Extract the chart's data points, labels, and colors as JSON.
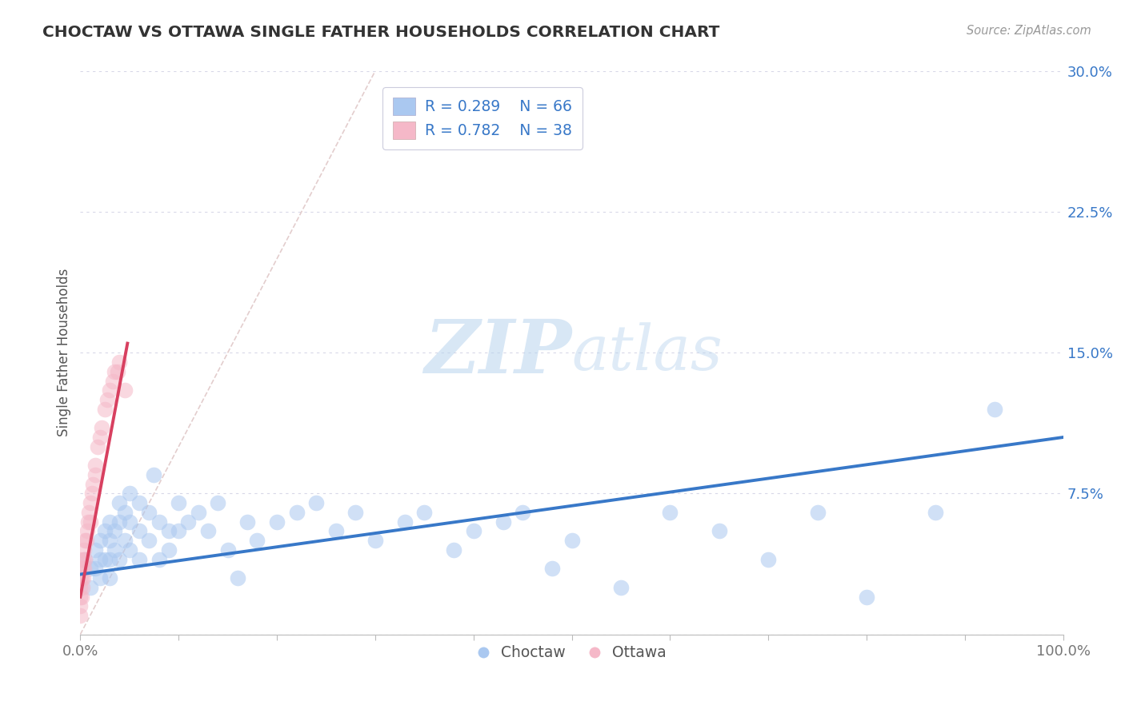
{
  "title": "CHOCTAW VS OTTAWA SINGLE FATHER HOUSEHOLDS CORRELATION CHART",
  "source": "Source: ZipAtlas.com",
  "ylabel": "Single Father Households",
  "xlabel": "",
  "xlim": [
    0,
    1.0
  ],
  "ylim": [
    0,
    0.3
  ],
  "yticks": [
    0,
    0.075,
    0.15,
    0.225,
    0.3
  ],
  "ytick_labels": [
    "",
    "7.5%",
    "15.0%",
    "22.5%",
    "30.0%"
  ],
  "xtick_labels_start": "0.0%",
  "xtick_labels_end": "100.0%",
  "background_color": "#ffffff",
  "grid_color": "#d8d8e8",
  "title_color": "#333333",
  "watermark_zip": "ZIP",
  "watermark_atlas": "atlas",
  "legend_r1": "R = 0.289",
  "legend_n1": "N = 66",
  "legend_r2": "R = 0.782",
  "legend_n2": "N = 38",
  "choctaw_color": "#aac8f0",
  "ottawa_color": "#f5b8c8",
  "choctaw_line_color": "#3878c8",
  "ottawa_line_color": "#d84060",
  "ref_line_color": "#e0c8c8",
  "choctaw_scatter": {
    "x": [
      0.005,
      0.01,
      0.01,
      0.015,
      0.015,
      0.02,
      0.02,
      0.02,
      0.025,
      0.025,
      0.03,
      0.03,
      0.03,
      0.03,
      0.035,
      0.035,
      0.04,
      0.04,
      0.04,
      0.045,
      0.045,
      0.05,
      0.05,
      0.05,
      0.06,
      0.06,
      0.06,
      0.07,
      0.07,
      0.075,
      0.08,
      0.08,
      0.09,
      0.09,
      0.1,
      0.1,
      0.11,
      0.12,
      0.13,
      0.14,
      0.15,
      0.16,
      0.17,
      0.18,
      0.2,
      0.22,
      0.24,
      0.26,
      0.28,
      0.3,
      0.33,
      0.35,
      0.38,
      0.4,
      0.43,
      0.45,
      0.48,
      0.5,
      0.55,
      0.6,
      0.65,
      0.7,
      0.75,
      0.8,
      0.87,
      0.93
    ],
    "y": [
      0.04,
      0.035,
      0.025,
      0.045,
      0.035,
      0.05,
      0.04,
      0.03,
      0.055,
      0.04,
      0.06,
      0.05,
      0.04,
      0.03,
      0.055,
      0.045,
      0.07,
      0.06,
      0.04,
      0.065,
      0.05,
      0.075,
      0.06,
      0.045,
      0.07,
      0.055,
      0.04,
      0.065,
      0.05,
      0.085,
      0.06,
      0.04,
      0.055,
      0.045,
      0.07,
      0.055,
      0.06,
      0.065,
      0.055,
      0.07,
      0.045,
      0.03,
      0.06,
      0.05,
      0.06,
      0.065,
      0.07,
      0.055,
      0.065,
      0.05,
      0.06,
      0.065,
      0.045,
      0.055,
      0.06,
      0.065,
      0.035,
      0.05,
      0.025,
      0.065,
      0.055,
      0.04,
      0.065,
      0.02,
      0.065,
      0.12
    ]
  },
  "ottawa_scatter": {
    "x": [
      0.0,
      0.0,
      0.0,
      0.0,
      0.0,
      0.0,
      0.0,
      0.001,
      0.001,
      0.002,
      0.002,
      0.003,
      0.003,
      0.004,
      0.004,
      0.005,
      0.005,
      0.006,
      0.007,
      0.008,
      0.009,
      0.01,
      0.01,
      0.012,
      0.013,
      0.015,
      0.015,
      0.018,
      0.02,
      0.022,
      0.025,
      0.027,
      0.03,
      0.033,
      0.035,
      0.038,
      0.04,
      0.045
    ],
    "y": [
      0.01,
      0.015,
      0.02,
      0.025,
      0.03,
      0.035,
      0.04,
      0.02,
      0.03,
      0.025,
      0.035,
      0.03,
      0.04,
      0.035,
      0.045,
      0.04,
      0.05,
      0.05,
      0.055,
      0.06,
      0.065,
      0.06,
      0.07,
      0.075,
      0.08,
      0.085,
      0.09,
      0.1,
      0.105,
      0.11,
      0.12,
      0.125,
      0.13,
      0.135,
      0.14,
      0.14,
      0.145,
      0.13
    ]
  },
  "choctaw_line": {
    "x0": 0.0,
    "x1": 1.0,
    "y0": 0.032,
    "y1": 0.105
  },
  "ottawa_line": {
    "x0": 0.0,
    "x1": 0.048,
    "y0": 0.02,
    "y1": 0.155
  }
}
